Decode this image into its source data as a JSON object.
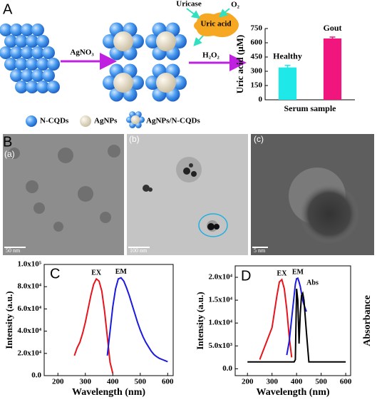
{
  "figure": {
    "panel_A": "A",
    "panel_B": "B",
    "panel_C": "C",
    "panel_D": "D",
    "sub_a": "(a)",
    "sub_b": "(b)",
    "sub_c": "(c)",
    "scale_a": "50 nm",
    "scale_b": "100 nm",
    "scale_c": "5 nm",
    "reagent": "AgNO₃",
    "enzyme": "Uricase",
    "oxygen": "O₂",
    "substrate": "Uric acid",
    "product": "H₂O₂",
    "legend": [
      "N-CQDs",
      "AgNPs",
      "AgNPs/N-CQDs"
    ]
  },
  "chart_data": [
    {
      "type": "bar",
      "categories": [
        "Healthy",
        "Gout"
      ],
      "values": [
        340,
        645
      ],
      "errors": [
        22,
        15
      ],
      "colors": [
        "#1fe8e8",
        "#f0167e"
      ],
      "ylabel": "Uric acid (μM)",
      "xlabel": "Serum sample",
      "ylim": [
        0,
        750
      ],
      "yticks": [
        0,
        150,
        300,
        450,
        600,
        750
      ]
    },
    {
      "type": "line",
      "x": [
        260,
        270,
        280,
        290,
        300,
        310,
        320,
        330,
        340,
        350,
        360,
        370,
        380,
        390,
        400,
        410,
        420,
        430,
        440,
        450,
        460,
        470,
        480,
        490,
        500,
        510,
        520,
        530,
        540,
        550,
        560,
        570,
        580,
        590,
        600
      ],
      "series": [
        {
          "name": "EX",
          "color": "#e8141b",
          "values": [
            18000,
            25000,
            30000,
            38000,
            48000,
            60000,
            72000,
            82000,
            87000,
            85000,
            76000,
            58000,
            35000,
            12000,
            2000,
            null,
            null,
            null,
            null,
            null,
            null,
            null,
            null,
            null,
            null,
            null,
            null,
            null,
            null,
            null,
            null,
            null,
            null,
            null,
            null
          ]
        },
        {
          "name": "EM",
          "color": "#1a1adf",
          "values": [
            null,
            null,
            null,
            null,
            null,
            null,
            null,
            null,
            null,
            null,
            null,
            null,
            18000,
            40000,
            62000,
            78000,
            87000,
            88000,
            85000,
            79000,
            72000,
            64000,
            56000,
            48000,
            41000,
            35000,
            30000,
            26000,
            22000,
            19000,
            17000,
            15500,
            14500,
            13500,
            12500
          ]
        }
      ],
      "xlabel": "Wavelength (nm)",
      "ylabel": "Intensity (a.u.)",
      "xlim": [
        150,
        620
      ],
      "xticks": [
        200,
        300,
        400,
        500,
        600
      ],
      "ylim": [
        0,
        100000
      ],
      "yticks": [
        {
          "value": 0,
          "label": "0.0"
        },
        {
          "value": 20000,
          "label": "2.0x10⁴"
        },
        {
          "value": 40000,
          "label": "4.0x10⁴"
        },
        {
          "value": 60000,
          "label": "6.0x10⁴"
        },
        {
          "value": 80000,
          "label": "8.0x10⁴"
        },
        {
          "value": 100000,
          "label": "1.0x10⁵"
        }
      ]
    },
    {
      "type": "line",
      "x": [
        200,
        250,
        300,
        320,
        330,
        340,
        350,
        360,
        370,
        380,
        390,
        395,
        400,
        405,
        410,
        415,
        420,
        425,
        430,
        440,
        450,
        500,
        550,
        600
      ],
      "series": [
        {
          "name": "EX",
          "color": "#e8141b",
          "values": [
            null,
            2000,
            9000,
            16000,
            19000,
            19500,
            17500,
            13000,
            7000,
            2500,
            null,
            null,
            null,
            null,
            null,
            null,
            null,
            null,
            null,
            null,
            null,
            null,
            null,
            null
          ]
        },
        {
          "name": "EM",
          "color": "#1a1adf",
          "values": [
            null,
            null,
            null,
            null,
            null,
            null,
            null,
            3000,
            6000,
            11000,
            16000,
            18500,
            19700,
            19800,
            19000,
            18000,
            16500,
            15000,
            14000,
            12500,
            null,
            null,
            null,
            null
          ]
        },
        {
          "name": "Abs",
          "color": "#000000",
          "values": [
            1500,
            1500,
            1500,
            1500,
            1500,
            1500,
            1500,
            1500,
            1500,
            1500,
            1500,
            2000,
            17500,
            15000,
            5500,
            12000,
            16000,
            16500,
            15000,
            8000,
            1500,
            1500,
            1500,
            1500
          ]
        }
      ],
      "xlabel": "Wavelength (nm)",
      "ylabel": "Intensity (a.u.)",
      "y2label": "Absorbance",
      "xlim": [
        150,
        620
      ],
      "xticks": [
        200,
        300,
        400,
        500,
        600
      ],
      "ylim": [
        -1500,
        22500
      ],
      "yticks": [
        {
          "value": 0,
          "label": "0.0"
        },
        {
          "value": 5000,
          "label": "5.0x10³"
        },
        {
          "value": 10000,
          "label": "1.0x10⁴"
        },
        {
          "value": 15000,
          "label": "1.5x10⁴"
        },
        {
          "value": 20000,
          "label": "2.0x10⁴"
        }
      ]
    }
  ]
}
